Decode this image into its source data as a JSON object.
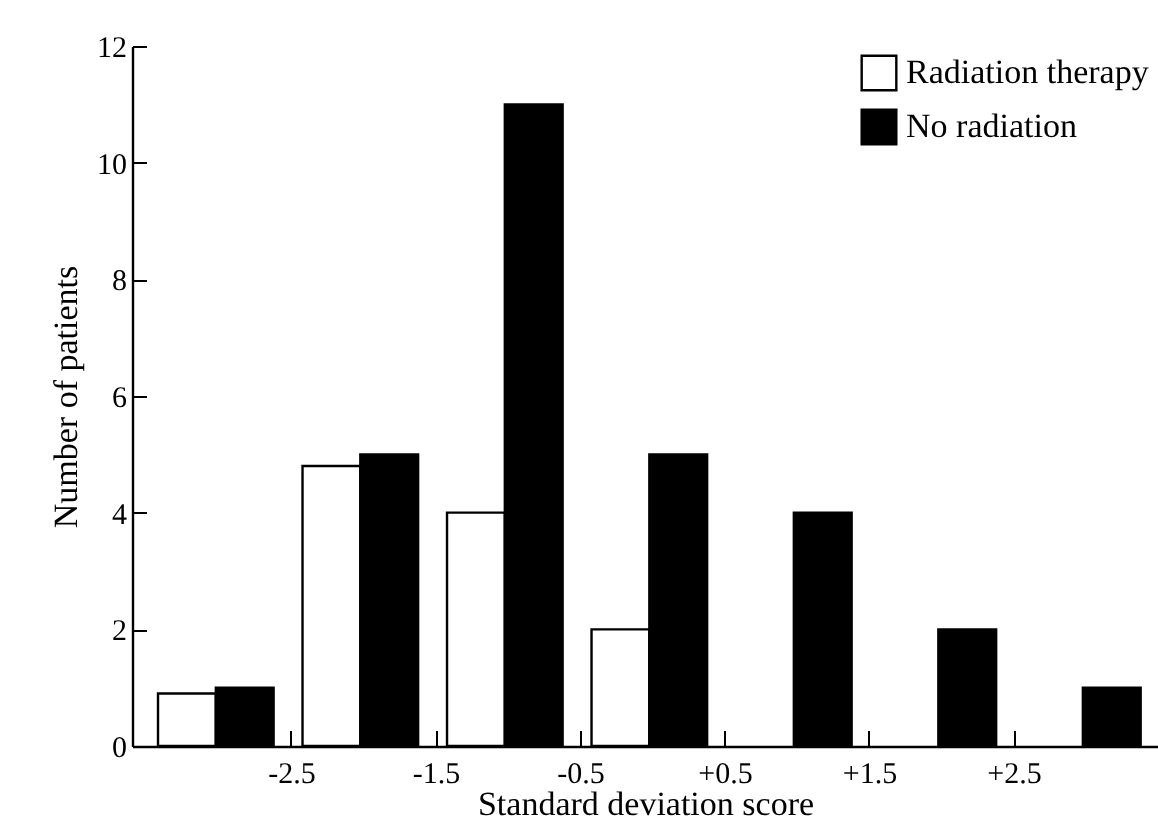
{
  "chart_data": {
    "type": "histogram",
    "xlabel": "Standard deviation score",
    "ylabel": "Number of patients",
    "bins": [
      -3.5,
      -2.5,
      -1.5,
      -0.5,
      0.5,
      1.5,
      2.5,
      3.5
    ],
    "series": [
      {
        "name": "Radiation therapy",
        "color": "#ffffff",
        "values": [
          0.9,
          4.8,
          4,
          2,
          0,
          0,
          0
        ]
      },
      {
        "name": "No radiation",
        "color": "#000000",
        "values": [
          1,
          5,
          11,
          5,
          4,
          2,
          1
        ]
      }
    ],
    "xlim": [
      -3.6,
      3.5
    ],
    "xticks": [
      -2.5,
      -1.5,
      -0.5,
      {
        "value": 0.5,
        "label": "+0.5"
      },
      {
        "value": 1.5,
        "label": "+1.5"
      },
      {
        "value": 2.5,
        "label": "+2.5"
      }
    ],
    "ylim": [
      0,
      12
    ],
    "yticks": [
      0,
      2,
      4,
      6,
      8,
      10,
      12
    ],
    "grid": false,
    "legend": "top right"
  }
}
